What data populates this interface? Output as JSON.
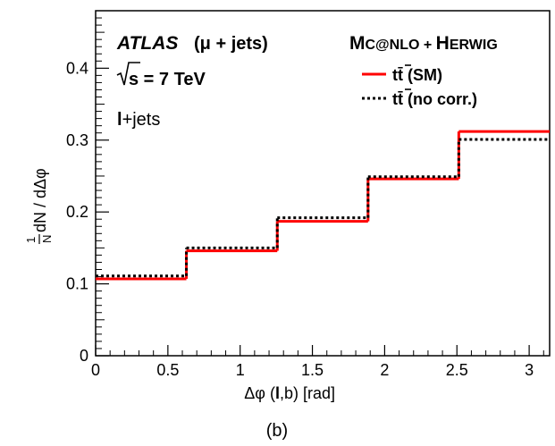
{
  "chart_data": {
    "type": "line",
    "style": "step-histogram",
    "bin_edges": [
      0,
      0.628,
      1.257,
      1.885,
      2.513,
      3.1416
    ],
    "series": [
      {
        "name": "tt̄ (SM)",
        "values": [
          0.107,
          0.146,
          0.187,
          0.246,
          0.312
        ],
        "color": "#ff0000",
        "line": "solid"
      },
      {
        "name": "tt̄ (no corr.)",
        "values": [
          0.111,
          0.15,
          0.192,
          0.249,
          0.301
        ],
        "color": "#000000",
        "line": "dotted"
      }
    ],
    "xlim": [
      0,
      3.1416
    ],
    "ylim": [
      0,
      0.48
    ],
    "x_ticks": [
      0,
      0.5,
      1,
      1.5,
      2,
      2.5,
      3
    ],
    "x_tick_labels": [
      "0",
      "0.5",
      "1",
      "1.5",
      "2",
      "2.5",
      "3"
    ],
    "y_ticks": [
      0,
      0.1,
      0.2,
      0.3,
      0.4
    ],
    "y_tick_labels": [
      "0",
      "0.1",
      "0.2",
      "0.3",
      "0.4"
    ],
    "xlabel": {
      "prefix": "Δφ (",
      "bold": "l",
      "suffix": ",b) [rad]"
    },
    "ylabel": {
      "frac_num": "1",
      "frac_den": "N",
      "rest": "dN / dΔφ"
    },
    "annotations": {
      "experiment": "ATLAS",
      "channel": "(μ + jets)",
      "energy_label": "s = 7 TeV",
      "selection_bold": "l",
      "selection_rest": "+jets",
      "generator_big1": "M",
      "generator_small1": "C@NLO + ",
      "generator_big2": "H",
      "generator_small2": "ERWIG"
    },
    "legend": {
      "placement": "top-right"
    },
    "grid": false,
    "panel_label": "(b)"
  }
}
